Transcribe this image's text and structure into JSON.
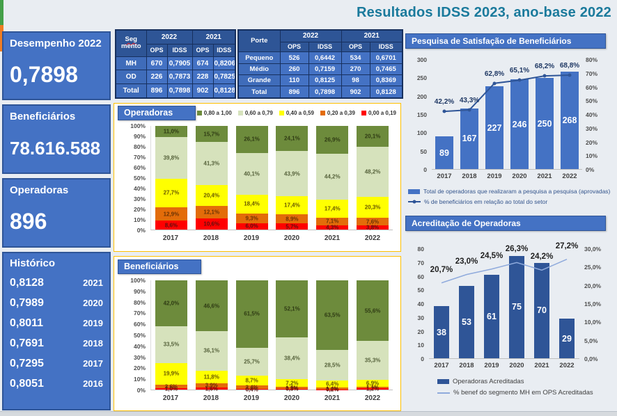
{
  "page": {
    "title": "Resultados IDSS 2023, ano-base 2022"
  },
  "kpi_cards": {
    "desempenho": {
      "label": "Desempenho 2022",
      "value": "0,7898"
    },
    "beneficiarios": {
      "label": "Beneficiários",
      "value": "78.616.588"
    },
    "operadoras": {
      "label": "Operadoras",
      "value": "896"
    },
    "historico": {
      "label": "Histórico",
      "rows": [
        {
          "value": "0,8128",
          "year": "2021"
        },
        {
          "value": "0,7989",
          "year": "2020"
        },
        {
          "value": "0,8011",
          "year": "2019"
        },
        {
          "value": "0,7691",
          "year": "2018"
        },
        {
          "value": "0,7295",
          "year": "2017"
        },
        {
          "value": "0,8051",
          "year": "2016"
        }
      ]
    }
  },
  "tables": {
    "segmento": {
      "corner_top": "Seg",
      "corner_bottom": "mento",
      "years": [
        "2022",
        "2021"
      ],
      "subheaders": [
        "OPS",
        "IDSS",
        "OPS",
        "IDSS"
      ],
      "rows": [
        {
          "label": "MH",
          "cells": [
            "670",
            "0,7905",
            "674",
            "0,8206"
          ]
        },
        {
          "label": "OD",
          "cells": [
            "226",
            "0,7873",
            "228",
            "0,7825"
          ]
        },
        {
          "label": "Total",
          "cells": [
            "896",
            "0,7898",
            "902",
            "0,8128"
          ]
        }
      ]
    },
    "porte": {
      "corner": "Porte",
      "years": [
        "2022",
        "2021"
      ],
      "subheaders": [
        "OPS",
        "IDSS",
        "OPS",
        "IDSS"
      ],
      "rows": [
        {
          "label": "Pequeno",
          "cells": [
            "526",
            "0,6442",
            "534",
            "0,6701"
          ]
        },
        {
          "label": "Médio",
          "cells": [
            "260",
            "0,7159",
            "270",
            "0,7465"
          ]
        },
        {
          "label": "Grande",
          "cells": [
            "110",
            "0,8125",
            "98",
            "0,8369"
          ]
        },
        {
          "label": "Total",
          "cells": [
            "896",
            "0,7898",
            "902",
            "0,8128"
          ]
        }
      ]
    }
  },
  "chart_data": [
    {
      "id": "operadoras",
      "type": "bar",
      "stacked": true,
      "title": "Operadoras",
      "categories": [
        "2017",
        "2018",
        "2019",
        "2020",
        "2021",
        "2022"
      ],
      "ylim": [
        0,
        100
      ],
      "yticks": [
        "100%",
        "90%",
        "80%",
        "70%",
        "60%",
        "50%",
        "40%",
        "30%",
        "20%",
        "10%",
        "0%"
      ],
      "legend_position": "top-right",
      "series": [
        {
          "name": "0,80 a 1,00",
          "color": "#6d8b3c",
          "label_color": "#2f3b14",
          "values": [
            11.0,
            15.7,
            26.1,
            24.1,
            26.9,
            20.1
          ],
          "labels": [
            "11,0%",
            "15,7%",
            "26,1%",
            "24,1%",
            "26,9%",
            "20,1%"
          ]
        },
        {
          "name": "0,60 a 0,79",
          "color": "#d6e2bc",
          "label_color": "#55613a",
          "values": [
            39.8,
            41.3,
            40.1,
            43.9,
            44.2,
            48.2
          ],
          "labels": [
            "39,8%",
            "41,3%",
            "40,1%",
            "43,9%",
            "44,2%",
            "48,2%"
          ]
        },
        {
          "name": "0,40 a 0,59",
          "color": "#ffff00",
          "label_color": "#6a5a00",
          "values": [
            27.7,
            20.4,
            18.4,
            17.4,
            17.4,
            20.3
          ],
          "labels": [
            "27,7%",
            "20,4%",
            "18,4%",
            "17,4%",
            "17,4%",
            "20,3%"
          ]
        },
        {
          "name": "0,20 a 0,39",
          "color": "#e36c09",
          "label_color": "#6b3305",
          "values": [
            12.9,
            12.1,
            9.3,
            8.9,
            7.1,
            7.6
          ],
          "labels": [
            "12,9%",
            "12,1%",
            "9,3%",
            "8,9%",
            "7,1%",
            "7,6%"
          ]
        },
        {
          "name": "0,00 a 0,19",
          "color": "#ff0000",
          "label_color": "#5d1010",
          "values": [
            8.6,
            10.6,
            6.0,
            5.7,
            4.3,
            3.8
          ],
          "labels": [
            "8,6%",
            "10,6%",
            "6,0%",
            "5,7%",
            "4,3%",
            "3,8%"
          ]
        }
      ]
    },
    {
      "id": "beneficiarios",
      "type": "bar",
      "stacked": true,
      "title": "Beneficiários",
      "categories": [
        "2017",
        "2018",
        "2019",
        "2020",
        "2021",
        "2022"
      ],
      "ylim": [
        0,
        100
      ],
      "yticks": [
        "100%",
        "90%",
        "80%",
        "70%",
        "60%",
        "50%",
        "40%",
        "30%",
        "20%",
        "10%",
        "0%"
      ],
      "legend_position": "none",
      "series": [
        {
          "name": "0,80 a 1,00",
          "color": "#6d8b3c",
          "label_color": "#2f3b14",
          "values": [
            42.0,
            46.6,
            61.5,
            52.1,
            63.5,
            55.6
          ],
          "labels": [
            "42,0%",
            "46,6%",
            "61,5%",
            "52,1%",
            "63,5%",
            "55,6%"
          ]
        },
        {
          "name": "0,60 a 0,79",
          "color": "#d6e2bc",
          "label_color": "#55613a",
          "values": [
            33.5,
            36.1,
            25.7,
            38.4,
            28.5,
            35.3
          ],
          "labels": [
            "33,5%",
            "36,1%",
            "25,7%",
            "38,4%",
            "28,5%",
            "35,3%"
          ]
        },
        {
          "name": "0,40 a 0,59",
          "color": "#ffff00",
          "label_color": "#6a5a00",
          "values": [
            19.9,
            11.8,
            8.7,
            7.2,
            6.4,
            6.9
          ],
          "labels": [
            "19,9%",
            "11,8%",
            "8,7%",
            "7,2%",
            "6,4%",
            "6,9%"
          ]
        },
        {
          "name": "0,20 a 0,39",
          "color": "#e36c09",
          "label_color": "#6b3305",
          "values": [
            3.6,
            3.9,
            3.4,
            1.5,
            1.4,
            1.1
          ],
          "labels": [
            "3,6%",
            "3,9%",
            "3,4%",
            "1,5%",
            "1,4%",
            "1,1%"
          ]
        },
        {
          "name": "0,00 a 0,19",
          "color": "#ff0000",
          "label_color": "#5d1010",
          "values": [
            1.0,
            1.6,
            0.4,
            0.8,
            0.2,
            1.2
          ],
          "labels": [
            "1,0%",
            "1,6%",
            "0,4%",
            "0,8%",
            "0,2%",
            "1,2%"
          ]
        }
      ]
    },
    {
      "id": "pesquisa",
      "type": "bar+line",
      "title": "Pesquisa de Satisfação de Beneficiários",
      "categories": [
        "2017",
        "2018",
        "2019",
        "2020",
        "2021",
        "2022"
      ],
      "bars": {
        "name": "Total de operadoras que realizaram a pesquisa a pesquisa (aprovadas)",
        "color": "#4472c4",
        "values": [
          89,
          167,
          227,
          246,
          250,
          268
        ],
        "labels": [
          "89",
          "167",
          "227",
          "246",
          "250",
          "268"
        ]
      },
      "line": {
        "name": "% de beneficiários em relação ao total do setor",
        "color": "#2f5597",
        "markers": true,
        "values": [
          42.2,
          43.3,
          62.8,
          65.1,
          68.2,
          68.8
        ],
        "labels": [
          "42,2%",
          "43,3%",
          "62,8%",
          "65,1%",
          "68,2%",
          "68,8%"
        ]
      },
      "left_axis": {
        "min": 0,
        "max": 300,
        "ticks": [
          "300",
          "250",
          "200",
          "150",
          "100",
          "50",
          "0"
        ]
      },
      "right_axis": {
        "min": 0,
        "max": 80,
        "ticks": [
          "80%",
          "70%",
          "60%",
          "50%",
          "40%",
          "30%",
          "20%",
          "10%",
          "0%"
        ]
      }
    },
    {
      "id": "acreditacao",
      "type": "bar+line",
      "title": "Acreditação de Operadoras",
      "categories": [
        "2017",
        "2018",
        "2019",
        "2020",
        "2021",
        "2022"
      ],
      "bars": {
        "name": "Operadoras Acreditadas",
        "color": "#2f5597",
        "values": [
          38,
          53,
          61,
          75,
          70,
          29
        ],
        "labels": [
          "38",
          "53",
          "61",
          "75",
          "70",
          "29"
        ]
      },
      "line": {
        "name": "% benef do segmento MH em OPS Acreditadas",
        "color": "#8faadc",
        "markers": false,
        "values": [
          20.7,
          23.0,
          24.5,
          26.3,
          24.2,
          27.2
        ],
        "labels": [
          "20,7%",
          "23,0%",
          "24,5%",
          "26,3%",
          "24,2%",
          "27,2%"
        ]
      },
      "left_axis": {
        "min": 0,
        "max": 80,
        "ticks": [
          "80",
          "70",
          "60",
          "50",
          "40",
          "30",
          "20",
          "10",
          "0"
        ]
      },
      "right_axis": {
        "min": 0,
        "max": 30,
        "ticks": [
          "30,0%",
          "25,0%",
          "20,0%",
          "15,0%",
          "10,0%",
          "5,0%",
          "0,0%"
        ]
      }
    }
  ]
}
